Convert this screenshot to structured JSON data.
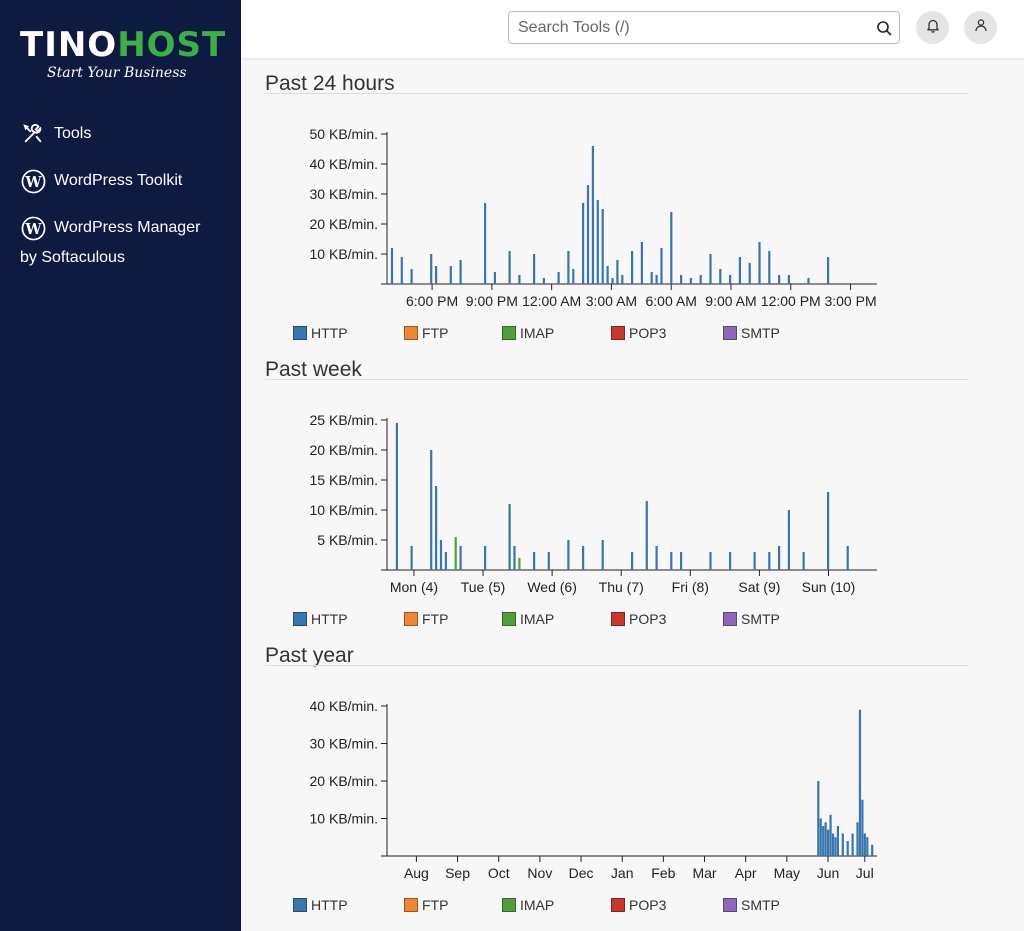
{
  "brand": {
    "name_part1": "TINO",
    "name_part2": "HOST",
    "tagline": "Start Your Business"
  },
  "sidebar": {
    "items": [
      {
        "label": "Tools",
        "icon": "tools-icon"
      },
      {
        "label": "WordPress Toolkit",
        "icon": "wordpress-icon"
      },
      {
        "label": "WordPress Manager",
        "sublabel": "by Softaculous",
        "icon": "wordpress-icon"
      }
    ]
  },
  "header": {
    "search_placeholder": "Search Tools (/)",
    "search_value": ""
  },
  "legend": [
    {
      "label": "HTTP",
      "color": "#3b75af"
    },
    {
      "label": "FTP",
      "color": "#ef8636"
    },
    {
      "label": "IMAP",
      "color": "#519e3e"
    },
    {
      "label": "POP3",
      "color": "#c53932"
    },
    {
      "label": "SMTP",
      "color": "#8d69b8"
    }
  ],
  "sections": [
    {
      "title": "Past 24 hours"
    },
    {
      "title": "Past week"
    },
    {
      "title": "Past year"
    }
  ],
  "chart_data": [
    {
      "type": "bar",
      "title": "Past 24 hours",
      "ylim": [
        0,
        50
      ],
      "yticks": [
        "10 KB/min.",
        "20 KB/min.",
        "30 KB/min.",
        "40 KB/min.",
        "50 KB/min."
      ],
      "ytick_values": [
        10,
        20,
        30,
        40,
        50
      ],
      "xticks": [
        "6:00 PM",
        "9:00 PM",
        "12:00 AM",
        "3:00 AM",
        "6:00 AM",
        "9:00 AM",
        "12:00 PM",
        "3:00 PM"
      ],
      "xtick_positions": [
        0.092,
        0.214,
        0.336,
        0.458,
        0.58,
        0.702,
        0.824,
        0.946
      ],
      "series": [
        {
          "name": "HTTP",
          "color": "#3b75af",
          "x": [
            0.01,
            0.03,
            0.05,
            0.09,
            0.1,
            0.13,
            0.15,
            0.2,
            0.22,
            0.25,
            0.27,
            0.3,
            0.32,
            0.35,
            0.37,
            0.38,
            0.4,
            0.41,
            0.42,
            0.43,
            0.44,
            0.45,
            0.46,
            0.47,
            0.48,
            0.5,
            0.52,
            0.54,
            0.55,
            0.56,
            0.58,
            0.6,
            0.62,
            0.64,
            0.66,
            0.68,
            0.7,
            0.72,
            0.74,
            0.76,
            0.78,
            0.8,
            0.82,
            0.86,
            0.9
          ],
          "values": [
            12,
            9,
            5,
            10,
            6,
            6,
            8,
            27,
            4,
            11,
            3,
            10,
            2,
            4,
            11,
            5,
            27,
            33,
            46,
            28,
            25,
            6,
            2,
            8,
            3,
            11,
            14,
            4,
            3,
            12,
            24,
            3,
            2,
            3,
            10,
            5,
            3,
            9,
            7,
            14,
            11,
            3,
            3,
            2,
            9
          ]
        }
      ]
    },
    {
      "type": "bar",
      "title": "Past week",
      "ylim": [
        0,
        25
      ],
      "yticks": [
        "5 KB/min.",
        "10 KB/min.",
        "15 KB/min.",
        "20 KB/min.",
        "25 KB/min."
      ],
      "ytick_values": [
        5,
        10,
        15,
        20,
        25
      ],
      "xticks": [
        "Mon (4)",
        "Tue (5)",
        "Wed (6)",
        "Thu (7)",
        "Fri (8)",
        "Sat (9)",
        "Sun (10)"
      ],
      "xtick_positions": [
        0.055,
        0.196,
        0.337,
        0.478,
        0.619,
        0.76,
        0.901
      ],
      "series": [
        {
          "name": "HTTP",
          "color": "#3b75af",
          "x": [
            0.02,
            0.05,
            0.09,
            0.1,
            0.11,
            0.12,
            0.15,
            0.2,
            0.25,
            0.26,
            0.3,
            0.33,
            0.37,
            0.4,
            0.44,
            0.5,
            0.53,
            0.55,
            0.58,
            0.6,
            0.66,
            0.7,
            0.75,
            0.78,
            0.8,
            0.82,
            0.85,
            0.9,
            0.94
          ],
          "values": [
            24.5,
            4,
            20,
            14,
            5,
            3,
            4,
            4,
            11,
            4,
            3,
            3,
            5,
            4,
            5,
            3,
            11.5,
            4,
            3,
            3,
            3,
            3,
            3,
            3,
            4,
            10,
            3,
            13,
            4
          ]
        },
        {
          "name": "IMAP",
          "color": "#519e3e",
          "x": [
            0.14,
            0.27
          ],
          "values": [
            5.5,
            2
          ]
        }
      ]
    },
    {
      "type": "bar",
      "title": "Past year",
      "ylim": [
        0,
        40
      ],
      "yticks": [
        "10 KB/min.",
        "20 KB/min.",
        "30 KB/min.",
        "40 KB/min."
      ],
      "ytick_values": [
        10,
        20,
        30,
        40
      ],
      "xticks": [
        "Aug",
        "Sep",
        "Oct",
        "Nov",
        "Dec",
        "Jan",
        "Feb",
        "Mar",
        "Apr",
        "May",
        "Jun",
        "Jul"
      ],
      "xtick_positions": [
        0.06,
        0.144,
        0.228,
        0.312,
        0.396,
        0.48,
        0.564,
        0.648,
        0.732,
        0.816,
        0.9,
        0.975
      ],
      "series": [
        {
          "name": "HTTP",
          "color": "#3b75af",
          "x": [
            0.88,
            0.885,
            0.89,
            0.895,
            0.9,
            0.905,
            0.91,
            0.915,
            0.92,
            0.93,
            0.94,
            0.95,
            0.96,
            0.965,
            0.97,
            0.975,
            0.98,
            0.99
          ],
          "values": [
            20,
            10,
            8,
            9,
            7,
            11,
            6,
            5,
            8,
            6,
            4,
            6,
            9,
            39,
            15,
            6,
            5,
            3
          ]
        }
      ]
    }
  ]
}
